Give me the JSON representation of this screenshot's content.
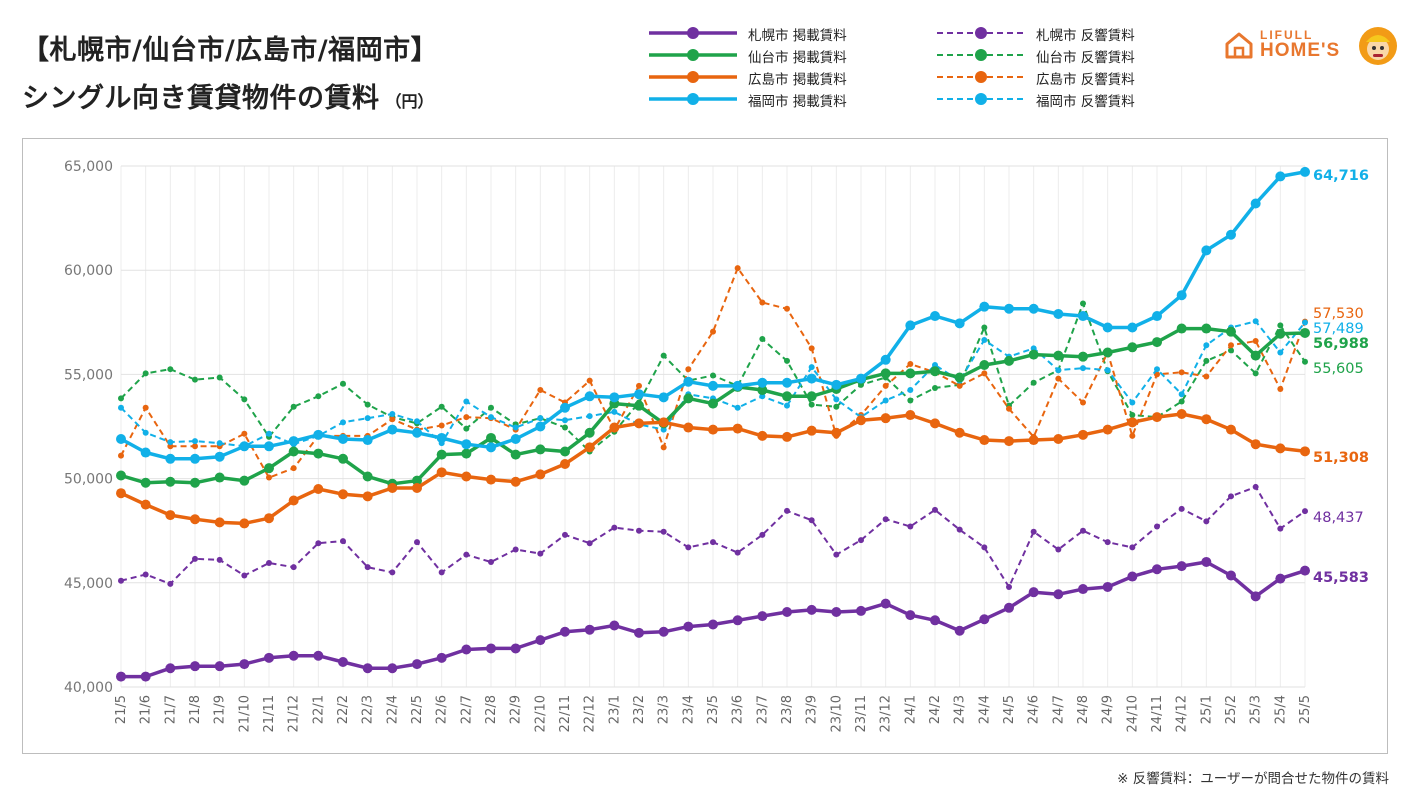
{
  "header": {
    "title_line1": "【札幌市/仙台市/広島市/福岡市】",
    "title_line2": "シングル向き賃貸物件の賃料",
    "unit": "（円）"
  },
  "logo": {
    "line1": "LIFULL",
    "line2": "HOME'S",
    "icon": "house-icon",
    "mascot": "mascot-icon"
  },
  "footnote": "※ 反響賃料：ユーザーが問合せた物件の賃料",
  "chart_data": {
    "type": "line",
    "ylim": [
      40000,
      65000
    ],
    "yticks": [
      40000,
      45000,
      50000,
      55000,
      60000,
      65000
    ],
    "ytick_labels": [
      "40,000",
      "45,000",
      "50,000",
      "55,000",
      "60,000",
      "65,000"
    ],
    "grid": "both",
    "legend_position": "top",
    "categories": [
      "21/5",
      "21/6",
      "21/7",
      "21/8",
      "21/9",
      "21/10",
      "21/11",
      "21/12",
      "22/1",
      "22/2",
      "22/3",
      "22/4",
      "22/5",
      "22/6",
      "22/7",
      "22/8",
      "22/9",
      "22/10",
      "22/11",
      "22/12",
      "23/1",
      "23/2",
      "23/3",
      "23/4",
      "23/5",
      "23/6",
      "23/7",
      "23/8",
      "23/9",
      "23/10",
      "23/11",
      "23/12",
      "24/1",
      "24/2",
      "24/3",
      "24/4",
      "24/5",
      "24/6",
      "24/7",
      "24/8",
      "24/9",
      "24/10",
      "24/11",
      "24/12",
      "25/1",
      "25/2",
      "25/3",
      "25/4",
      "25/5"
    ],
    "series": [
      {
        "name": "札幌市 掲載賃料",
        "color": "#7030a0",
        "dash": false,
        "end_label": "45,583",
        "values": [
          40500,
          40500,
          40900,
          41000,
          41000,
          41100,
          41400,
          41500,
          41500,
          41200,
          40900,
          40900,
          41100,
          41400,
          41800,
          41850,
          41850,
          42250,
          42650,
          42750,
          42950,
          42600,
          42650,
          42900,
          43000,
          43200,
          43400,
          43600,
          43700,
          43600,
          43650,
          44000,
          43450,
          43200,
          42700,
          43250,
          43800,
          44550,
          44450,
          44700,
          44800,
          45300,
          45650,
          45800,
          46000,
          45350,
          44350,
          45200,
          45583
        ]
      },
      {
        "name": "仙台市 掲載賃料",
        "color": "#1fa34a",
        "dash": false,
        "end_label": "56,988",
        "values": [
          50150,
          49800,
          49850,
          49800,
          50050,
          49900,
          50500,
          51300,
          51200,
          50950,
          50100,
          49750,
          49900,
          51150,
          51200,
          51950,
          51150,
          51400,
          51300,
          52200,
          53600,
          53500,
          52650,
          53850,
          53600,
          54400,
          54250,
          53950,
          53950,
          54300,
          54750,
          55050,
          55050,
          55150,
          54850,
          55450,
          55650,
          55950,
          55900,
          55850,
          56050,
          56300,
          56550,
          57200,
          57200,
          57050,
          55900,
          56950,
          56988
        ]
      },
      {
        "name": "広島市 掲載賃料",
        "color": "#e8650f",
        "dash": false,
        "end_label": "51,308",
        "values": [
          49300,
          48750,
          48250,
          48050,
          47900,
          47850,
          48100,
          48950,
          49500,
          49250,
          49150,
          49550,
          49550,
          50300,
          50100,
          49950,
          49850,
          50200,
          50700,
          51500,
          52450,
          52650,
          52700,
          52450,
          52350,
          52400,
          52050,
          52000,
          52300,
          52200,
          52800,
          52900,
          53050,
          52650,
          52200,
          51850,
          51800,
          51850,
          51900,
          52100,
          52350,
          52700,
          52950,
          53100,
          52850,
          52350,
          51650,
          51450,
          51308
        ]
      },
      {
        "name": "福岡市 掲載賃料",
        "color": "#11b0e8",
        "dash": false,
        "end_label": "64,716",
        "values": [
          51900,
          51250,
          50950,
          50950,
          51050,
          51550,
          51550,
          51800,
          52100,
          51900,
          51850,
          52350,
          52200,
          51950,
          51650,
          51500,
          51900,
          52500,
          53400,
          53950,
          53900,
          54050,
          53900,
          54650,
          54450,
          54450,
          54600,
          54600,
          54800,
          54500,
          54800,
          55700,
          57350,
          57800,
          57450,
          58250,
          58150,
          58150,
          57900,
          57800,
          57250,
          57250,
          57800,
          58800,
          60950,
          61700,
          63200,
          64500,
          64716
        ]
      },
      {
        "name": "札幌市 反響賃料",
        "color": "#7030a0",
        "dash": true,
        "end_label": "48,437",
        "values": [
          45100,
          45400,
          44950,
          46150,
          46100,
          45350,
          45950,
          45750,
          46900,
          47000,
          45750,
          45500,
          46950,
          45500,
          46350,
          46000,
          46600,
          46400,
          47300,
          46900,
          47650,
          47500,
          47450,
          46700,
          46950,
          46450,
          47300,
          48450,
          48000,
          46350,
          47050,
          48050,
          47700,
          48500,
          47550,
          46700,
          44800,
          47450,
          46600,
          47500,
          46950,
          46700,
          47700,
          48550,
          47950,
          49150,
          49600,
          47600,
          48437
        ]
      },
      {
        "name": "仙台市 反響賃料",
        "color": "#1fa34a",
        "dash": true,
        "end_label": "55,605",
        "values": [
          53850,
          55050,
          55250,
          54750,
          54850,
          53800,
          52000,
          53450,
          53950,
          54550,
          53550,
          52950,
          52650,
          53450,
          52400,
          53400,
          52600,
          52900,
          52450,
          51300,
          52250,
          53650,
          55900,
          54700,
          54950,
          54450,
          56700,
          55650,
          53550,
          53450,
          54500,
          54850,
          53750,
          54350,
          54500,
          57250,
          53500,
          54600,
          55200,
          58400,
          55150,
          53050,
          52950,
          53700,
          55650,
          56150,
          55050,
          57350,
          55605
        ]
      },
      {
        "name": "広島市 反響賃料",
        "color": "#e8650f",
        "dash": true,
        "end_label": "57,530",
        "values": [
          51100,
          53400,
          51550,
          51550,
          51550,
          52150,
          50050,
          50500,
          52050,
          52050,
          52050,
          52850,
          52350,
          52550,
          52950,
          52900,
          52350,
          54250,
          53650,
          54700,
          52350,
          54450,
          51500,
          55250,
          57050,
          60100,
          58450,
          58150,
          56250,
          52050,
          53050,
          54450,
          55500,
          55100,
          54450,
          55050,
          53350,
          52000,
          54800,
          53650,
          56050,
          52050,
          55000,
          55100,
          54900,
          56400,
          56600,
          54300,
          57530
        ]
      },
      {
        "name": "福岡市 反響賃料",
        "color": "#11b0e8",
        "dash": true,
        "end_label": "57,489",
        "values": [
          53400,
          52200,
          51750,
          51800,
          51700,
          51550,
          52150,
          51650,
          52050,
          52700,
          52900,
          53100,
          52750,
          51700,
          53700,
          52950,
          52450,
          52900,
          52800,
          53000,
          53200,
          52600,
          52350,
          54050,
          53850,
          53400,
          53950,
          53500,
          55350,
          53800,
          52950,
          53750,
          54250,
          55450,
          54700,
          56650,
          55850,
          56250,
          55200,
          55300,
          55200,
          53650,
          55250,
          54050,
          56400,
          57250,
          57550,
          56050,
          57489
        ]
      }
    ]
  }
}
